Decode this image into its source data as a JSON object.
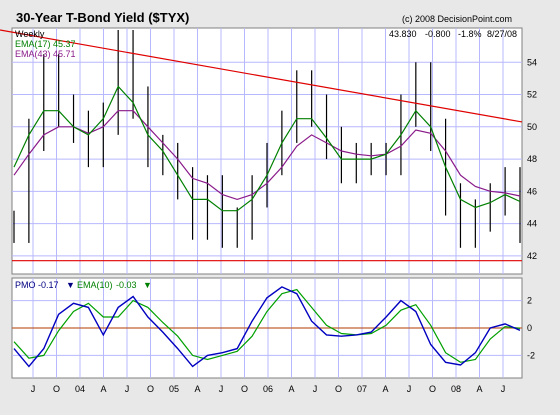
{
  "colors": {
    "background": "#e8e8e8",
    "panel": "#ffffff",
    "grid": "#b8b8ff",
    "price": "#000000",
    "ema_short": "#008000",
    "ema_long": "#8a1a8a",
    "pmo": "#0000c0",
    "pmo_signal": "#00a000",
    "trendline": "#e00000",
    "zero_line": "#c06030"
  },
  "header": {
    "title": "30-Year T-Bond Yield ($TYX)",
    "credit": "(c) 2008 DecisionPoint.com",
    "period": "Weekly",
    "last_value": "43.830",
    "change": "-0.800",
    "change_pct": "-1.8%",
    "date": "8/27/08",
    "ema_short_label": "EMA(17) 45.37",
    "ema_long_label": "EMA(43) 45.71"
  },
  "pmo_header": {
    "pmo_label": "PMO",
    "pmo_value": "-0.17",
    "pmo_arrow": "▼",
    "ema_label": "EMA(10)",
    "ema_value": "-0.03",
    "ema_arrow": "▼"
  },
  "chart_data": [
    {
      "type": "line",
      "title": "30-Year T-Bond Yield ($TYX)",
      "subtype": "weekly high-low bars with moving averages",
      "x_ticks": [
        "J",
        "O",
        "04",
        "A",
        "J",
        "O",
        "05",
        "A",
        "J",
        "O",
        "06",
        "A",
        "J",
        "O",
        "07",
        "A",
        "J",
        "O",
        "08",
        "A",
        "J"
      ],
      "y_ticks": [
        42,
        44,
        46,
        48,
        50,
        52,
        54
      ],
      "ylim": [
        41,
        56
      ],
      "grid": true,
      "series": [
        {
          "name": "$TYX",
          "values": [
            43.8,
            49.5,
            53.5,
            51.0,
            50.0,
            48.5,
            50.5,
            55.0,
            51.5,
            48.5,
            48.0,
            46.5,
            44.0,
            46.0,
            43.5,
            44.0,
            46.0,
            48.0,
            50.0,
            52.5,
            51.0,
            49.0,
            47.5,
            48.0,
            48.0,
            48.0,
            51.0,
            53.0,
            49.5,
            45.5,
            43.5,
            44.5,
            45.5,
            46.5,
            43.8
          ]
        },
        {
          "name": "EMA(17)",
          "values": [
            47.5,
            49.5,
            51.0,
            51.0,
            50.0,
            49.5,
            50.5,
            52.5,
            51.5,
            49.5,
            48.5,
            47.0,
            45.5,
            45.5,
            44.8,
            44.8,
            45.5,
            47.0,
            49.0,
            50.5,
            50.5,
            49.3,
            48.0,
            48.0,
            48.0,
            48.3,
            49.5,
            51.0,
            50.0,
            47.5,
            45.5,
            45.0,
            45.3,
            45.8,
            45.37
          ]
        },
        {
          "name": "EMA(43)",
          "values": [
            47.0,
            48.3,
            49.5,
            50.0,
            50.0,
            49.6,
            50.0,
            51.0,
            51.0,
            50.0,
            49.0,
            48.0,
            46.8,
            46.5,
            45.8,
            45.5,
            45.8,
            46.5,
            47.5,
            48.8,
            49.5,
            49.0,
            48.5,
            48.3,
            48.2,
            48.3,
            48.8,
            49.8,
            49.6,
            48.5,
            47.0,
            46.3,
            46.0,
            45.9,
            45.71
          ]
        }
      ],
      "trendline": {
        "from": [
          0,
          56.0
        ],
        "to": [
          1,
          50.3
        ]
      },
      "support_line": 41.7
    },
    {
      "type": "line",
      "title": "PMO",
      "ylim": [
        -3.5,
        3.5
      ],
      "y_ticks": [
        -2,
        0,
        2
      ],
      "zero_line": 0,
      "series": [
        {
          "name": "PMO",
          "values": [
            -1.5,
            -2.8,
            -1.5,
            1.0,
            1.8,
            1.5,
            -0.5,
            1.5,
            2.3,
            0.8,
            -0.3,
            -1.5,
            -2.8,
            -2.0,
            -1.8,
            -1.5,
            0.5,
            2.2,
            3.0,
            2.5,
            0.5,
            -0.5,
            -0.6,
            -0.5,
            -0.3,
            0.8,
            2.0,
            1.2,
            -1.2,
            -2.5,
            -2.7,
            -1.8,
            0.0,
            0.3,
            -0.17
          ]
        },
        {
          "name": "EMA(10)",
          "values": [
            -1.0,
            -2.2,
            -2.0,
            -0.2,
            1.2,
            1.8,
            0.8,
            0.8,
            2.0,
            1.5,
            0.4,
            -0.6,
            -2.0,
            -2.3,
            -2.0,
            -1.7,
            -0.6,
            1.2,
            2.5,
            2.8,
            1.5,
            0.2,
            -0.4,
            -0.5,
            -0.4,
            0.2,
            1.3,
            1.7,
            0.2,
            -1.8,
            -2.5,
            -2.3,
            -0.8,
            0.1,
            -0.03
          ]
        }
      ]
    }
  ]
}
